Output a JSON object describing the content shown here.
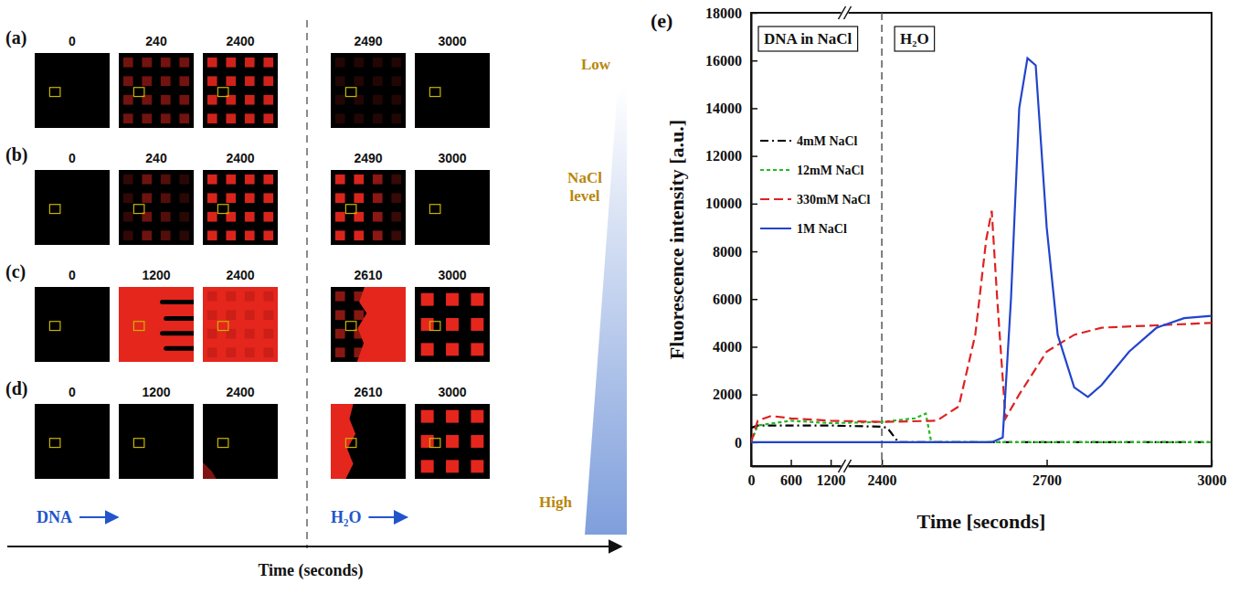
{
  "image_panels": {
    "rows": [
      {
        "letter": "(a)",
        "times": [
          0,
          240,
          2400,
          2490,
          3000
        ]
      },
      {
        "letter": "(b)",
        "times": [
          0,
          240,
          2400,
          2490,
          3000
        ]
      },
      {
        "letter": "(c)",
        "times": [
          0,
          1200,
          2400,
          2610,
          3000
        ]
      },
      {
        "letter": "(d)",
        "times": [
          0,
          1200,
          2400,
          2610,
          3000
        ]
      }
    ],
    "scale_low": "Low",
    "scale_label": "NaCl level",
    "scale_high": "High",
    "phase_1": "DNA",
    "phase_2": "H₂O",
    "axis_label": "Time (seconds)"
  },
  "chart_data": {
    "type": "line",
    "panel_label": "(e)",
    "xlabel": "Time [seconds]",
    "ylabel": "Fluorescence intensity [a.u.]",
    "xlim": [
      0,
      3000
    ],
    "xbreak": [
      1350,
      2340
    ],
    "xticks": [
      0,
      600,
      1200,
      2400,
      2700,
      3000
    ],
    "ylim": [
      -1000,
      18000
    ],
    "yticks": [
      0,
      2000,
      4000,
      6000,
      8000,
      10000,
      12000,
      14000,
      16000,
      18000
    ],
    "vline": 2400,
    "annotations": [
      "DNA in NaCl",
      "H₂O"
    ],
    "legend": "upper left",
    "series": [
      {
        "name": "4mM NaCl",
        "color": "#000000",
        "line_style": "dashdot",
        "x": [
          0,
          100,
          600,
          1200,
          2400,
          2410,
          2430,
          3000
        ],
        "values": [
          600,
          700,
          700,
          700,
          650,
          600,
          0,
          0
        ]
      },
      {
        "name": "12mM NaCl",
        "color": "#22bb22",
        "line_style": "dotted",
        "x": [
          0,
          100,
          600,
          1200,
          2400,
          2460,
          2480,
          2490,
          3000
        ],
        "values": [
          0,
          700,
          900,
          800,
          850,
          1000,
          1200,
          0,
          0
        ]
      },
      {
        "name": "330mM NaCl",
        "color": "#dd2222",
        "line_style": "dashed",
        "x": [
          0,
          100,
          300,
          600,
          1200,
          2400,
          2500,
          2540,
          2570,
          2590,
          2600,
          2610,
          2625,
          2650,
          2700,
          2750,
          2800,
          2900,
          3000
        ],
        "values": [
          0,
          900,
          1100,
          1000,
          900,
          850,
          900,
          1500,
          4500,
          8500,
          9700,
          6000,
          1000,
          2000,
          3800,
          4500,
          4800,
          4900,
          5000
        ]
      },
      {
        "name": "1M NaCl",
        "color": "#2244cc",
        "line_style": "solid",
        "x": [
          0,
          1200,
          2400,
          2600,
          2620,
          2635,
          2650,
          2665,
          2680,
          2700,
          2720,
          2750,
          2775,
          2800,
          2850,
          2900,
          2950,
          3000
        ],
        "values": [
          0,
          0,
          0,
          0,
          200,
          6000,
          14000,
          16100,
          15800,
          9000,
          4500,
          2300,
          1900,
          2400,
          3800,
          4800,
          5200,
          5300
        ]
      }
    ]
  }
}
